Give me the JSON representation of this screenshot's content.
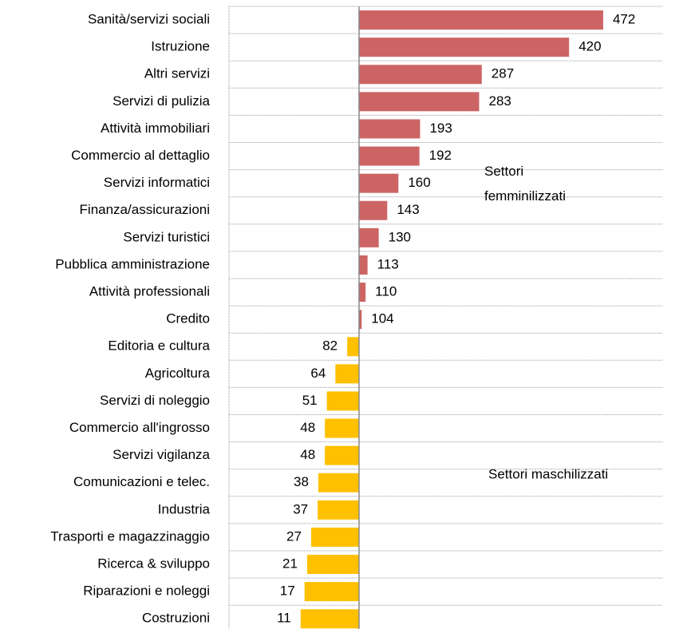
{
  "chart_data": {
    "type": "bar",
    "orientation": "horizontal",
    "baseline": 100,
    "xlim": [
      0,
      500
    ],
    "grid": true,
    "categories": [
      "Sanità/servizi sociali",
      "Istruzione",
      "Altri servizi",
      "Servizi di pulizia",
      "Attività immobiliari",
      "Commercio al dettaglio",
      "Servizi informatici",
      "Finanza/assicurazioni",
      "Servizi turistici",
      "Pubblica amministrazione",
      "Attività professionali",
      "Credito",
      "Editoria e cultura",
      "Agricoltura",
      "Servizi di noleggio",
      "Commercio all'ingrosso",
      "Servizi vigilanza",
      "Comunicazioni e telec.",
      "Industria",
      "Trasporti e magazzinaggio",
      "Ricerca & sviluppo",
      "Riparazioni e noleggi",
      "Costruzioni"
    ],
    "series": [
      {
        "name": "Settori femminilizzati",
        "color": "#cd6464",
        "values": [
          472,
          420,
          287,
          283,
          193,
          192,
          160,
          143,
          130,
          113,
          110,
          104,
          null,
          null,
          null,
          null,
          null,
          null,
          null,
          null,
          null,
          null,
          null
        ]
      },
      {
        "name": "Settori maschilizzati",
        "color": "#ffc000",
        "values": [
          null,
          null,
          null,
          null,
          null,
          null,
          null,
          null,
          null,
          null,
          null,
          null,
          82,
          64,
          51,
          48,
          48,
          38,
          37,
          27,
          21,
          17,
          11
        ]
      }
    ]
  }
}
